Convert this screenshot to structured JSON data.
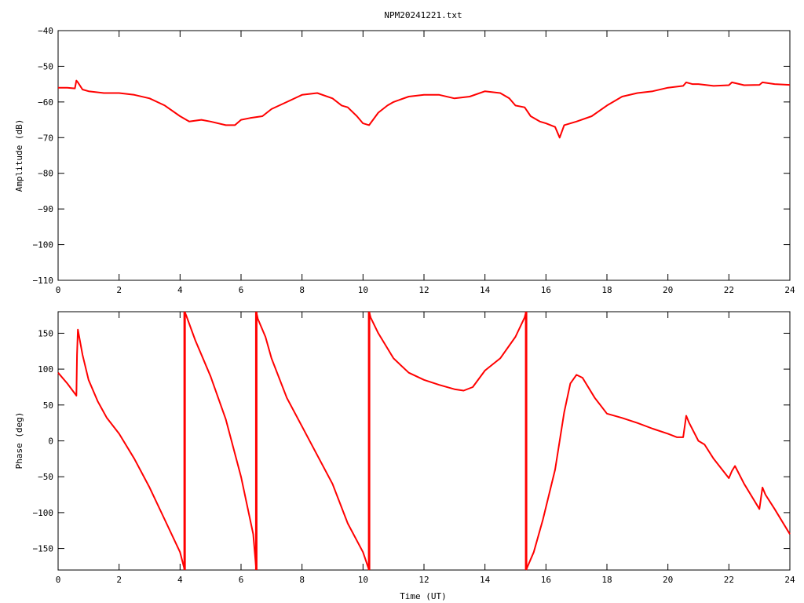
{
  "title": "NPM20241221.txt",
  "colors": {
    "series": "#ff0000",
    "axis": "#000000",
    "background": "#ffffff"
  },
  "chart_data": [
    {
      "type": "line",
      "title": "NPM20241221.txt",
      "xlabel": "",
      "ylabel": "Amplitude (dB)",
      "xlim": [
        0,
        24
      ],
      "ylim": [
        -110,
        -40
      ],
      "xticks": [
        "0",
        "2",
        "4",
        "6",
        "8",
        "10",
        "12",
        "14",
        "16",
        "18",
        "20",
        "22",
        "24"
      ],
      "yticks": [
        "-110",
        "-100",
        "-90",
        "-80",
        "-70",
        "-60",
        "-50",
        "-40"
      ],
      "grid": false,
      "series": [
        {
          "x": [
            0,
            0.3,
            0.55,
            0.6,
            0.65,
            0.8,
            1.0,
            1.5,
            2,
            2.5,
            3,
            3.5,
            4,
            4.3,
            4.7,
            5,
            5.5,
            5.8,
            6,
            6.3,
            6.7,
            7,
            7.5,
            8,
            8.5,
            9,
            9.3,
            9.5,
            9.8,
            10,
            10.2,
            10.5,
            10.8,
            11,
            11.5,
            12,
            12.5,
            13,
            13.5,
            14,
            14.5,
            14.8,
            15,
            15.3,
            15.5,
            15.8,
            16,
            16.3,
            16.45,
            16.6,
            17,
            17.5,
            18,
            18.5,
            19,
            19.5,
            20,
            20.5,
            20.6,
            20.8,
            21,
            21.5,
            22,
            22.1,
            22.5,
            23,
            23.1,
            23.5,
            24
          ],
          "values": [
            -56,
            -56,
            -56.2,
            -54,
            -54.5,
            -56.5,
            -57,
            -57.5,
            -57.5,
            -58,
            -59,
            -61,
            -64,
            -65.5,
            -65,
            -65.5,
            -66.5,
            -66.5,
            -65,
            -64.5,
            -64,
            -62,
            -60,
            -58,
            -57.5,
            -59,
            -61,
            -61.5,
            -64,
            -66,
            -66.5,
            -63,
            -61,
            -60,
            -58.5,
            -58,
            -58,
            -59,
            -58.5,
            -57,
            -57.5,
            -59,
            -61,
            -61.5,
            -64,
            -65.5,
            -66,
            -67,
            -70,
            -66.5,
            -65.5,
            -64,
            -61,
            -58.5,
            -57.5,
            -57,
            -56,
            -55.5,
            -54.5,
            -55,
            -55,
            -55.5,
            -55.3,
            -54.5,
            -55.3,
            -55.2,
            -54.5,
            -55,
            -55.2
          ]
        }
      ]
    },
    {
      "type": "line",
      "title": "",
      "xlabel": "Time (UT)",
      "ylabel": "Phase (deg)",
      "xlim": [
        0,
        24
      ],
      "ylim": [
        -180,
        180
      ],
      "xticks": [
        "0",
        "2",
        "4",
        "6",
        "8",
        "10",
        "12",
        "14",
        "16",
        "18",
        "20",
        "22",
        "24"
      ],
      "yticks": [
        "-150",
        "-100",
        "-50",
        "0",
        "50",
        "100",
        "150"
      ],
      "grid": false,
      "series": [
        {
          "x": [
            0,
            0.3,
            0.6,
            0.62,
            0.65,
            0.8,
            1,
            1.3,
            1.6,
            2,
            2.5,
            3,
            3.5,
            4,
            4.15
          ],
          "values": [
            95,
            80,
            63,
            120,
            155,
            120,
            85,
            55,
            32,
            10,
            -25,
            -65,
            -110,
            -155,
            -180
          ]
        },
        {
          "x": [
            4.15,
            4.2,
            4.5,
            5,
            5.5,
            6,
            6.4,
            6.5
          ],
          "values": [
            180,
            175,
            140,
            90,
            30,
            -50,
            -130,
            -180
          ]
        },
        {
          "x": [
            6.5,
            6.55,
            6.8,
            7,
            7.5,
            8,
            8.5,
            9,
            9.5,
            10,
            10.2
          ],
          "values": [
            180,
            170,
            145,
            115,
            60,
            20,
            -20,
            -60,
            -115,
            -155,
            -180
          ]
        },
        {
          "x": [
            10.2,
            10.25,
            10.5,
            11,
            11.5,
            12,
            12.5,
            13,
            13.3,
            13.6,
            14,
            14.5,
            15,
            15.3,
            15.35
          ],
          "values": [
            180,
            172,
            150,
            115,
            95,
            85,
            78,
            72,
            70,
            75,
            98,
            115,
            145,
            172,
            180
          ]
        },
        {
          "x": [
            15.35,
            15.4,
            15.6,
            15.9,
            16.3,
            16.6,
            16.8,
            17,
            17.2,
            17.6,
            18,
            18.5,
            19,
            19.5,
            20,
            20.3,
            20.5,
            20.6,
            20.7,
            21,
            21.2,
            21.5,
            22,
            22.1,
            22.2,
            22.5,
            23,
            23.1,
            23.2,
            23.5,
            24
          ],
          "values": [
            -180,
            -175,
            -155,
            -110,
            -40,
            40,
            80,
            92,
            88,
            60,
            38,
            32,
            25,
            17,
            10,
            5,
            5,
            35,
            25,
            0,
            -5,
            -25,
            -52,
            -42,
            -35,
            -60,
            -95,
            -65,
            -75,
            -95,
            -130
          ]
        }
      ]
    }
  ]
}
